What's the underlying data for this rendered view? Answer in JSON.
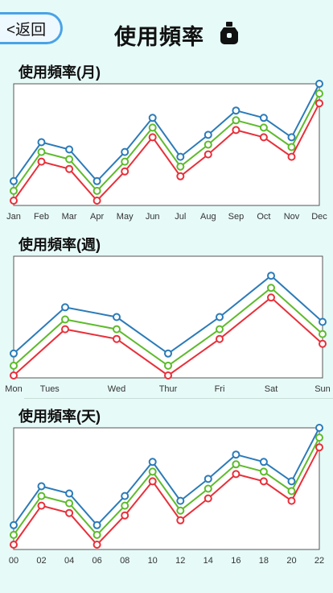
{
  "header": {
    "back_label": "<返回",
    "title": "使用頻率"
  },
  "colors": {
    "blue": "#2b7bb9",
    "green": "#5dbb2c",
    "red": "#e8303a"
  },
  "chart_data": [
    {
      "type": "line",
      "title": "使用頻率(月)",
      "categories": [
        "Jan",
        "Feb",
        "Mar",
        "Apr",
        "May",
        "Jun",
        "Jul",
        "Aug",
        "Sep",
        "Oct",
        "Nov",
        "Dec"
      ],
      "ylim": [
        0,
        100
      ],
      "series": [
        {
          "values": [
            20,
            52,
            46,
            20,
            44,
            72,
            40,
            58,
            78,
            72,
            56,
            100
          ]
        },
        {
          "values": [
            12,
            44,
            38,
            12,
            36,
            64,
            32,
            50,
            70,
            64,
            48,
            92
          ]
        },
        {
          "values": [
            4,
            36,
            30,
            4,
            28,
            56,
            24,
            42,
            62,
            56,
            40,
            84
          ]
        }
      ]
    },
    {
      "type": "line",
      "title": "使用頻率(週)",
      "categories": [
        "Mon",
        "Tues",
        "Wed",
        "Thur",
        "Fri",
        "Sat",
        "Sun"
      ],
      "tick_positions": [
        0,
        0.7,
        2,
        3,
        4,
        5,
        6
      ],
      "point_positions": [
        0,
        1,
        2,
        3,
        4,
        5,
        6
      ],
      "ylim": [
        0,
        100
      ],
      "series": [
        {
          "values": [
            20,
            58,
            50,
            20,
            50,
            84,
            46
          ]
        },
        {
          "values": [
            10,
            48,
            40,
            10,
            40,
            74,
            36
          ]
        },
        {
          "values": [
            2,
            40,
            32,
            2,
            32,
            66,
            28
          ]
        }
      ]
    },
    {
      "type": "line",
      "title": "使用頻率(天)",
      "categories": [
        "00",
        "02",
        "04",
        "06",
        "08",
        "10",
        "12",
        "14",
        "16",
        "18",
        "20",
        "22"
      ],
      "ylim": [
        0,
        100
      ],
      "series": [
        {
          "values": [
            20,
            52,
            46,
            20,
            44,
            72,
            40,
            58,
            78,
            72,
            56,
            100
          ]
        },
        {
          "values": [
            12,
            44,
            38,
            12,
            36,
            64,
            32,
            50,
            70,
            64,
            48,
            92
          ]
        },
        {
          "values": [
            4,
            36,
            30,
            4,
            28,
            56,
            24,
            42,
            62,
            56,
            40,
            84
          ]
        }
      ]
    }
  ]
}
